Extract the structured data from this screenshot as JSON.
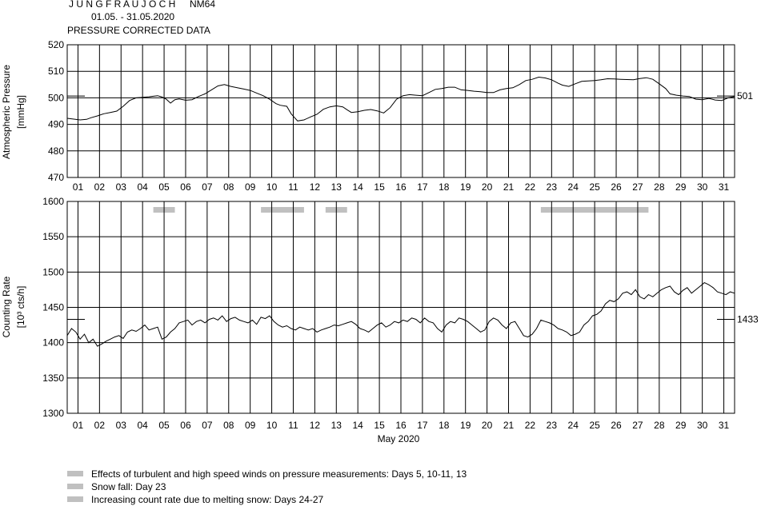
{
  "header": {
    "station": "J U N G F R A U J O C H",
    "monitor": "NM64",
    "period": "01.05. - 31.05.2020",
    "subtitle": "PRESSURE CORRECTED DATA"
  },
  "colors": {
    "line": "#000000",
    "grid": "#000000",
    "highlight": "#c0c0c0"
  },
  "chart_data": [
    {
      "type": "line",
      "ylabel": [
        "Atmospheric Pressure",
        "[mmHg]"
      ],
      "ylim": [
        470,
        520
      ],
      "yticks": [
        470,
        480,
        490,
        500,
        510,
        520
      ],
      "xlim": [
        0,
        31
      ],
      "day_labels": [
        "01",
        "02",
        "03",
        "04",
        "05",
        "06",
        "07",
        "08",
        "09",
        "10",
        "11",
        "12",
        "13",
        "14",
        "15",
        "16",
        "17",
        "18",
        "19",
        "20",
        "21",
        "22",
        "23",
        "24",
        "25",
        "26",
        "27",
        "28",
        "29",
        "30",
        "31"
      ],
      "grid": true,
      "mean_label": "501",
      "mean_value": 500.7,
      "series": [
        {
          "x": [
            0,
            0.3,
            0.6,
            0.9,
            1.1,
            1.4,
            1.7,
            2.0,
            2.3,
            2.6,
            2.9,
            3.2,
            3.5,
            3.8,
            4.0,
            4.2,
            4.4,
            4.6,
            4.8,
            5.0,
            5.2,
            5.5,
            5.8,
            6.1,
            6.4,
            6.7,
            7.0,
            7.3,
            7.6,
            7.9,
            8.2,
            8.5,
            8.8,
            9.1,
            9.4,
            9.7,
            9.9,
            10.2,
            10.4,
            10.7,
            11.0,
            11.3,
            11.6,
            11.9,
            12.2,
            12.5,
            12.8,
            13.0,
            13.2,
            13.5,
            13.8,
            14.1,
            14.4,
            14.7,
            15.0,
            15.3,
            15.6,
            15.9,
            16.2,
            16.5,
            16.8,
            17.1,
            17.4,
            17.7,
            18.0,
            18.3,
            18.6,
            18.9,
            19.2,
            19.5,
            19.8,
            20.1,
            20.4,
            20.7,
            21.0,
            21.3,
            21.6,
            21.9,
            22.2,
            22.5,
            22.8,
            23.0,
            23.3,
            23.6,
            23.9,
            24.2,
            24.5,
            24.8,
            25.1,
            25.4,
            25.7,
            26.0,
            26.3,
            26.6,
            26.9,
            27.2,
            27.5,
            27.8,
            28.0,
            28.3,
            28.6,
            28.9,
            29.2,
            29.5,
            29.8,
            30.1,
            30.4,
            30.7,
            31.0
          ],
          "y": [
            492.3,
            492.0,
            491.7,
            491.9,
            492.5,
            493.2,
            494.0,
            494.5,
            495.0,
            496.8,
            499.0,
            500.0,
            500.2,
            500.4,
            500.6,
            500.8,
            500.3,
            499.5,
            498.0,
            499.3,
            499.6,
            499.1,
            499.3,
            500.5,
            501.5,
            503.0,
            504.5,
            505.0,
            504.3,
            503.8,
            503.3,
            502.8,
            501.8,
            500.8,
            499.5,
            497.8,
            497.2,
            496.8,
            494.0,
            491.3,
            491.7,
            492.8,
            493.8,
            495.7,
            496.6,
            497.0,
            496.6,
            495.5,
            494.5,
            494.8,
            495.3,
            495.6,
            495.1,
            494.3,
            496.3,
            499.5,
            500.8,
            501.2,
            501.0,
            500.8,
            502.0,
            503.2,
            503.5,
            504.0,
            504.0,
            503.0,
            502.8,
            502.5,
            502.3,
            502.0,
            502.0,
            503.0,
            503.5,
            503.8,
            505.0,
            506.5,
            507.0,
            507.8,
            507.5,
            506.8,
            505.5,
            504.8,
            504.3,
            505.3,
            506.2,
            506.4,
            506.5,
            506.8,
            507.2,
            507.1,
            507.0,
            506.9,
            506.8,
            507.3,
            507.6,
            507.0,
            505.3,
            503.5,
            501.5,
            501.0,
            500.7,
            500.5,
            499.5,
            499.3,
            499.8,
            499.2,
            499.0,
            500.0,
            500.5
          ]
        }
      ]
    },
    {
      "type": "line",
      "ylabel": [
        "Counting Rate",
        "[10³ cts/h]"
      ],
      "ylim": [
        1300,
        1600
      ],
      "yticks": [
        1300,
        1350,
        1400,
        1450,
        1500,
        1550,
        1600
      ],
      "xlim": [
        0,
        31
      ],
      "day_labels": [
        "01",
        "02",
        "03",
        "04",
        "05",
        "06",
        "07",
        "08",
        "09",
        "10",
        "11",
        "12",
        "13",
        "14",
        "15",
        "16",
        "17",
        "18",
        "19",
        "20",
        "21",
        "22",
        "23",
        "24",
        "25",
        "26",
        "27",
        "28",
        "29",
        "30",
        "31"
      ],
      "grid": true,
      "xlabel": "May 2020",
      "mean_label": "1433",
      "mean_value": 1433,
      "highlight_spans": [
        [
          4.0,
          5.0
        ],
        [
          9.0,
          11.0
        ],
        [
          12.0,
          13.0
        ],
        [
          22.0,
          27.0
        ]
      ],
      "series": [
        {
          "x": [
            0,
            0.2,
            0.4,
            0.6,
            0.8,
            1.0,
            1.2,
            1.4,
            1.6,
            1.8,
            2.0,
            2.2,
            2.4,
            2.6,
            2.8,
            3.0,
            3.2,
            3.4,
            3.6,
            3.8,
            4.0,
            4.2,
            4.4,
            4.6,
            4.8,
            5.0,
            5.2,
            5.4,
            5.6,
            5.8,
            6.0,
            6.2,
            6.4,
            6.6,
            6.8,
            7.0,
            7.2,
            7.4,
            7.6,
            7.8,
            8.0,
            8.2,
            8.4,
            8.6,
            8.8,
            9.0,
            9.2,
            9.4,
            9.6,
            9.8,
            10.0,
            10.2,
            10.4,
            10.6,
            10.8,
            11.0,
            11.2,
            11.4,
            11.6,
            11.8,
            12.0,
            12.2,
            12.4,
            12.6,
            12.8,
            13.0,
            13.2,
            13.4,
            13.6,
            13.8,
            14.0,
            14.2,
            14.4,
            14.6,
            14.8,
            15.0,
            15.2,
            15.4,
            15.6,
            15.8,
            16.0,
            16.2,
            16.4,
            16.6,
            16.8,
            17.0,
            17.2,
            17.4,
            17.6,
            17.8,
            18.0,
            18.2,
            18.4,
            18.6,
            18.8,
            19.0,
            19.2,
            19.4,
            19.6,
            19.8,
            20.0,
            20.2,
            20.4,
            20.6,
            20.8,
            21.0,
            21.2,
            21.4,
            21.6,
            21.8,
            22.0,
            22.2,
            22.4,
            22.6,
            22.8,
            23.0,
            23.2,
            23.4,
            23.6,
            23.8,
            24.0,
            24.2,
            24.4,
            24.6,
            24.8,
            25.0,
            25.2,
            25.4,
            25.6,
            25.8,
            26.0,
            26.2,
            26.4,
            26.6,
            26.8,
            27.0,
            27.2,
            27.4,
            27.6,
            27.8,
            28.0,
            28.2,
            28.4,
            28.6,
            28.8,
            29.0,
            29.2,
            29.4,
            29.6,
            29.8,
            30.0,
            30.2,
            30.4,
            30.6,
            30.8,
            31.0
          ],
          "y": [
            1410,
            1420,
            1415,
            1405,
            1412,
            1400,
            1405,
            1395,
            1398,
            1402,
            1405,
            1408,
            1410,
            1406,
            1415,
            1418,
            1416,
            1420,
            1425,
            1418,
            1420,
            1422,
            1405,
            1408,
            1415,
            1420,
            1428,
            1430,
            1432,
            1425,
            1430,
            1432,
            1428,
            1433,
            1435,
            1432,
            1438,
            1430,
            1434,
            1436,
            1432,
            1430,
            1428,
            1432,
            1426,
            1436,
            1434,
            1438,
            1430,
            1425,
            1422,
            1424,
            1420,
            1418,
            1422,
            1420,
            1418,
            1420,
            1415,
            1418,
            1420,
            1422,
            1425,
            1424,
            1426,
            1428,
            1430,
            1426,
            1420,
            1418,
            1415,
            1420,
            1425,
            1428,
            1422,
            1425,
            1430,
            1428,
            1432,
            1430,
            1435,
            1433,
            1428,
            1435,
            1430,
            1428,
            1420,
            1415,
            1425,
            1430,
            1428,
            1435,
            1433,
            1430,
            1425,
            1420,
            1415,
            1418,
            1430,
            1435,
            1432,
            1425,
            1420,
            1428,
            1430,
            1420,
            1410,
            1408,
            1412,
            1420,
            1432,
            1430,
            1428,
            1425,
            1420,
            1418,
            1415,
            1410,
            1412,
            1415,
            1425,
            1430,
            1438,
            1440,
            1445,
            1455,
            1460,
            1458,
            1462,
            1470,
            1472,
            1468,
            1475,
            1465,
            1462,
            1468,
            1465,
            1470,
            1475,
            1478,
            1480,
            1472,
            1468,
            1474,
            1478,
            1470,
            1475,
            1480,
            1485,
            1482,
            1478,
            1472,
            1470,
            1468,
            1472,
            1470
          ]
        }
      ]
    }
  ],
  "legend": [
    {
      "text": "Effects of turbulent and high speed winds on pressure measurements: Days 5, 10-11, 13"
    },
    {
      "text": "Snow fall: Day 23"
    },
    {
      "text": "Increasing count rate due to melting snow: Days 24-27"
    }
  ]
}
